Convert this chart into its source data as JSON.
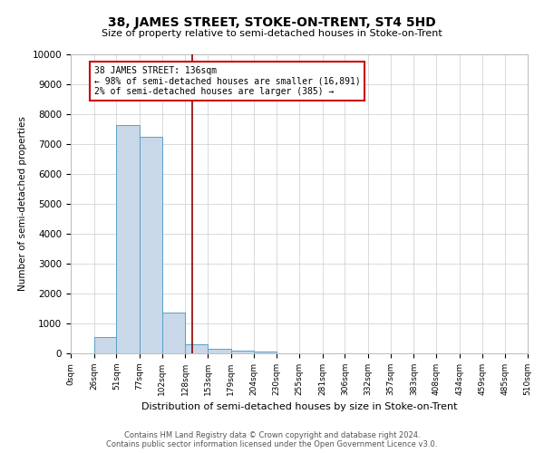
{
  "title": "38, JAMES STREET, STOKE-ON-TRENT, ST4 5HD",
  "subtitle": "Size of property relative to semi-detached houses in Stoke-on-Trent",
  "xlabel": "Distribution of semi-detached houses by size in Stoke-on-Trent",
  "ylabel": "Number of semi-detached properties",
  "footnote1": "Contains HM Land Registry data © Crown copyright and database right 2024.",
  "footnote2": "Contains public sector information licensed under the Open Government Licence v3.0.",
  "bin_labels": [
    "0sqm",
    "26sqm",
    "51sqm",
    "77sqm",
    "102sqm",
    "128sqm",
    "153sqm",
    "179sqm",
    "204sqm",
    "230sqm",
    "255sqm",
    "281sqm",
    "306sqm",
    "332sqm",
    "357sqm",
    "383sqm",
    "408sqm",
    "434sqm",
    "459sqm",
    "485sqm",
    "510sqm"
  ],
  "bar_values": [
    0,
    550,
    7650,
    7250,
    1350,
    300,
    150,
    85,
    70,
    0,
    0,
    0,
    0,
    0,
    0,
    0,
    0,
    0,
    0,
    0
  ],
  "bar_color": "#c8d8e8",
  "bar_edgecolor": "#5a9fc8",
  "annotation_box_color": "#cc0000",
  "ylim": [
    0,
    10000
  ],
  "yticks": [
    0,
    1000,
    2000,
    3000,
    4000,
    5000,
    6000,
    7000,
    8000,
    9000,
    10000
  ],
  "bin_edges": [
    0,
    26,
    51,
    77,
    102,
    128,
    153,
    179,
    204,
    230,
    255,
    281,
    306,
    332,
    357,
    383,
    408,
    434,
    459,
    485,
    510
  ],
  "property_sqm": 136,
  "property_line_label": "38 JAMES STREET: 136sqm",
  "annotation_line1": "← 98% of semi-detached houses are smaller (16,891)",
  "annotation_line2": "2% of semi-detached houses are larger (385) →"
}
